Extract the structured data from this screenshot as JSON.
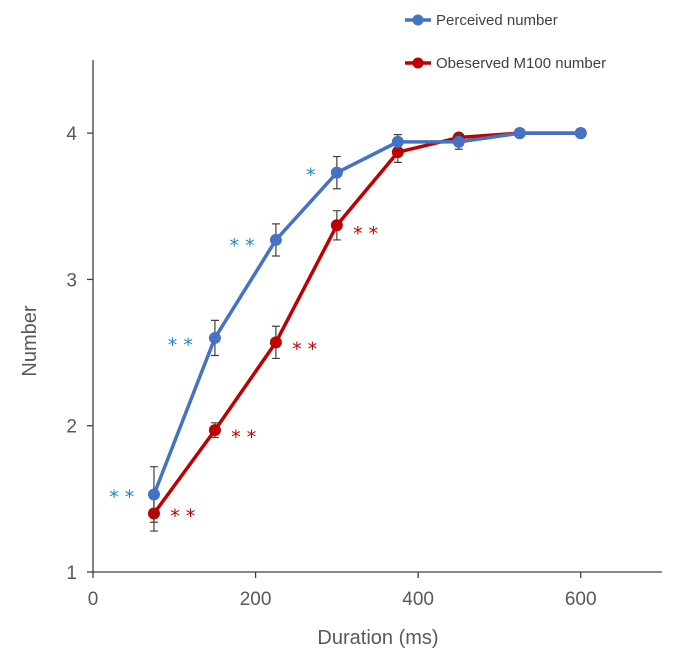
{
  "colors": {
    "blue": "#4472c4",
    "red": "#c00000",
    "sig_blue": "#1f87c8"
  },
  "chart_data": {
    "type": "line",
    "title": "",
    "xlabel": "Duration (ms)",
    "ylabel": "Number",
    "xlim": [
      0,
      700
    ],
    "ylim": [
      1,
      4.5
    ],
    "xticks": [
      0,
      200,
      400,
      600
    ],
    "yticks": [
      1,
      2,
      3,
      4
    ],
    "grid": false,
    "legend_position": "top-right",
    "series": [
      {
        "name": "Perceived number",
        "color": "#4472c4",
        "x": [
          75,
          150,
          225,
          300,
          375,
          450,
          525,
          600
        ],
        "y": [
          1.53,
          2.6,
          3.27,
          3.73,
          3.94,
          3.94,
          4.0,
          4.0
        ],
        "error": [
          0.19,
          0.12,
          0.11,
          0.11,
          0.05,
          0.05,
          0.0,
          0.0
        ]
      },
      {
        "name": "Obeserved M100 number",
        "color": "#c00000",
        "x": [
          75,
          150,
          225,
          300,
          375,
          450,
          525,
          600
        ],
        "y": [
          1.4,
          1.97,
          2.57,
          3.37,
          3.87,
          3.97,
          4.0,
          4.0
        ],
        "error": [
          0.12,
          0.05,
          0.11,
          0.1,
          0.07,
          0.02,
          0.0,
          0.0
        ]
      }
    ],
    "annotations": [
      {
        "text": "* *",
        "color": "#1f87c8",
        "x": 20,
        "y": 1.53
      },
      {
        "text": "* *",
        "color": "#1f87c8",
        "x": 92,
        "y": 2.57
      },
      {
        "text": "* *",
        "color": "#1f87c8",
        "x": 168,
        "y": 3.25
      },
      {
        "text": "*",
        "color": "#1f87c8",
        "x": 262,
        "y": 3.73
      },
      {
        "text": "* *",
        "color": "#c00000",
        "x": 95,
        "y": 1.4
      },
      {
        "text": "* *",
        "color": "#c00000",
        "x": 170,
        "y": 1.94
      },
      {
        "text": "* *",
        "color": "#c00000",
        "x": 245,
        "y": 2.54
      },
      {
        "text": "* *",
        "color": "#c00000",
        "x": 320,
        "y": 3.33
      }
    ]
  }
}
